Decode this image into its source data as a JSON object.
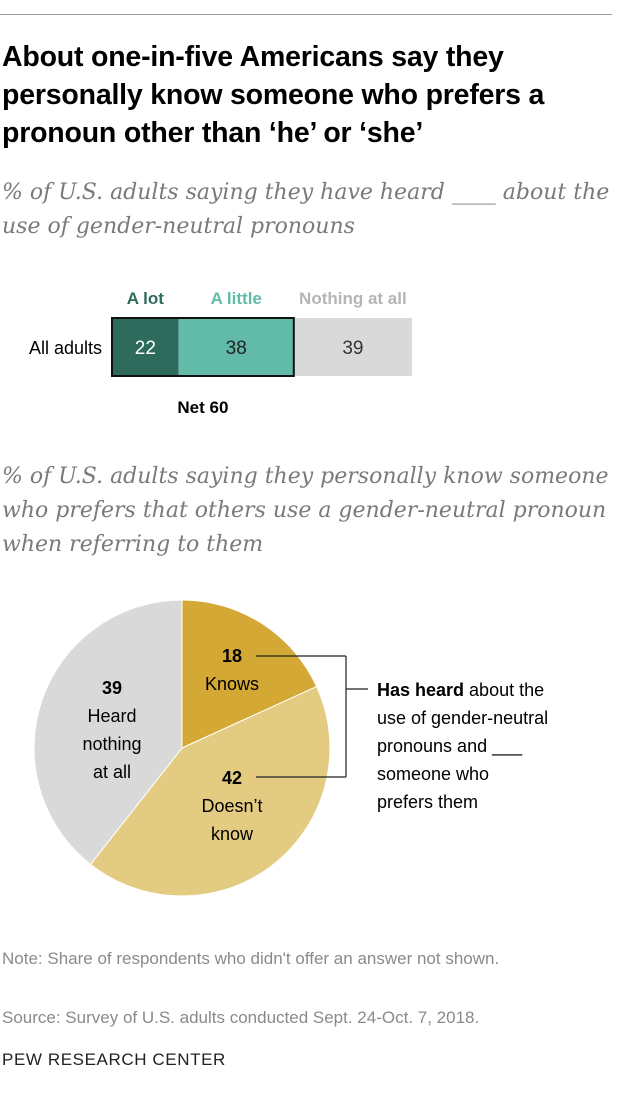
{
  "title": "About one-in-five Americans say they personally know someone who prefers a pronoun other than ‘he’ or ‘she’",
  "subtitle1": "% of U.S. adults saying they have heard ____ about the use of gender-neutral pronouns",
  "subtitle2": "% of U.S. adults saying they personally know someone who prefers that others use a gender-neutral pronoun when referring to them",
  "note": "Note: Share of respondents who didn't offer an answer not shown.",
  "source": "Source: Survey of U.S. adults conducted Sept. 24-Oct. 7, 2018.",
  "brand": "PEW RESEARCH CENTER",
  "colors": {
    "a_lot": "#2e6b5c",
    "a_little": "#62bba8",
    "nothing": "#d9d9d9",
    "knows": "#d3a834",
    "doesnt_know": "#e3cb82",
    "heard_nothing": "#d9d9d9"
  },
  "chart_data": [
    {
      "type": "bar",
      "orientation": "horizontal",
      "stacked": true,
      "categories": [
        "All adults"
      ],
      "series": [
        {
          "name": "A lot",
          "values": [
            22
          ]
        },
        {
          "name": "A little",
          "values": [
            38
          ]
        },
        {
          "name": "Nothing at all",
          "values": [
            39
          ]
        }
      ],
      "net_label": "Net 60"
    },
    {
      "type": "pie",
      "slices": [
        {
          "value": 18,
          "value_label": "18",
          "label": "Knows"
        },
        {
          "value": 42,
          "value_label": "42",
          "label": "Doesn’t know"
        },
        {
          "value": 39,
          "value_label": "39",
          "label": "Heard nothing at all"
        }
      ],
      "annotation_bold": "Has heard",
      "annotation_rest": "about the use of gender-neutral pronouns and ___ someone who prefers them"
    }
  ]
}
